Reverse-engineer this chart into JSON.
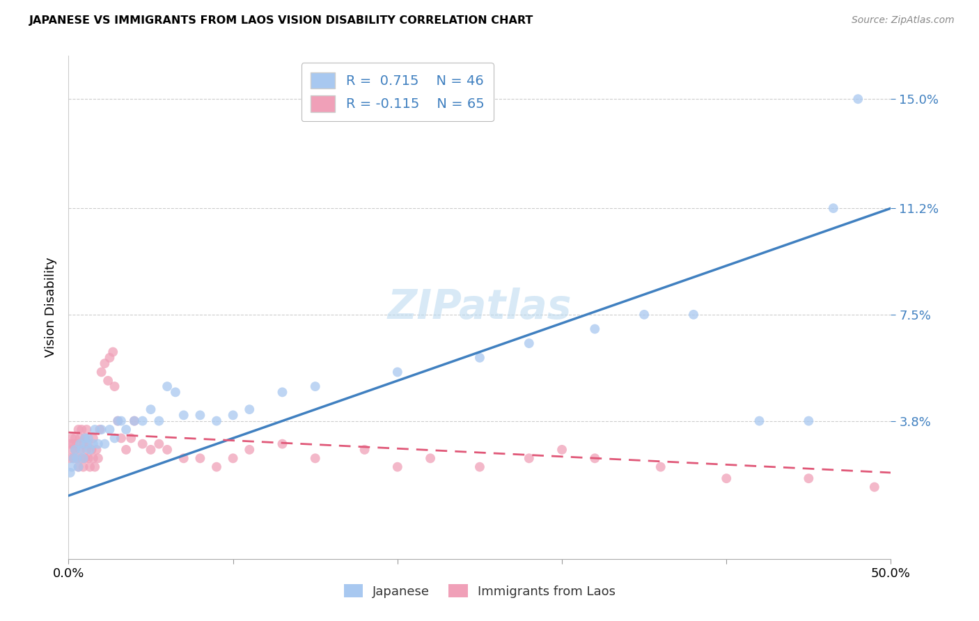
{
  "title": "JAPANESE VS IMMIGRANTS FROM LAOS VISION DISABILITY CORRELATION CHART",
  "source": "Source: ZipAtlas.com",
  "ylabel": "Vision Disability",
  "ytick_values": [
    0.038,
    0.075,
    0.112,
    0.15
  ],
  "xlim": [
    0.0,
    0.5
  ],
  "ylim": [
    -0.01,
    0.165
  ],
  "r_japanese": 0.715,
  "n_japanese": 46,
  "r_laos": -0.115,
  "n_laos": 65,
  "color_japanese": "#A8C8F0",
  "color_laos": "#F0A0B8",
  "color_japanese_line": "#4080C0",
  "color_laos_line": "#E05878",
  "japanese_x": [
    0.001,
    0.002,
    0.003,
    0.004,
    0.005,
    0.006,
    0.007,
    0.008,
    0.009,
    0.01,
    0.011,
    0.012,
    0.013,
    0.015,
    0.016,
    0.018,
    0.02,
    0.022,
    0.025,
    0.028,
    0.03,
    0.032,
    0.035,
    0.04,
    0.045,
    0.05,
    0.055,
    0.06,
    0.065,
    0.07,
    0.08,
    0.09,
    0.1,
    0.11,
    0.13,
    0.15,
    0.2,
    0.25,
    0.28,
    0.32,
    0.35,
    0.38,
    0.42,
    0.45,
    0.465,
    0.48
  ],
  "japanese_y": [
    0.02,
    0.022,
    0.025,
    0.028,
    0.025,
    0.022,
    0.03,
    0.028,
    0.025,
    0.032,
    0.03,
    0.032,
    0.028,
    0.03,
    0.035,
    0.03,
    0.035,
    0.03,
    0.035,
    0.032,
    0.038,
    0.038,
    0.035,
    0.038,
    0.038,
    0.042,
    0.038,
    0.05,
    0.048,
    0.04,
    0.04,
    0.038,
    0.04,
    0.042,
    0.048,
    0.05,
    0.055,
    0.06,
    0.065,
    0.07,
    0.075,
    0.075,
    0.038,
    0.038,
    0.112,
    0.15
  ],
  "laos_x": [
    0.001,
    0.001,
    0.002,
    0.002,
    0.003,
    0.003,
    0.004,
    0.004,
    0.005,
    0.005,
    0.006,
    0.006,
    0.007,
    0.007,
    0.008,
    0.008,
    0.009,
    0.009,
    0.01,
    0.01,
    0.011,
    0.011,
    0.012,
    0.012,
    0.013,
    0.014,
    0.015,
    0.015,
    0.016,
    0.017,
    0.018,
    0.019,
    0.02,
    0.022,
    0.024,
    0.025,
    0.027,
    0.028,
    0.03,
    0.032,
    0.035,
    0.038,
    0.04,
    0.045,
    0.05,
    0.055,
    0.06,
    0.07,
    0.08,
    0.09,
    0.1,
    0.11,
    0.13,
    0.15,
    0.18,
    0.2,
    0.22,
    0.25,
    0.28,
    0.3,
    0.32,
    0.36,
    0.4,
    0.45,
    0.49
  ],
  "laos_y": [
    0.025,
    0.03,
    0.028,
    0.032,
    0.025,
    0.03,
    0.028,
    0.032,
    0.025,
    0.03,
    0.022,
    0.035,
    0.028,
    0.032,
    0.025,
    0.035,
    0.022,
    0.03,
    0.025,
    0.032,
    0.028,
    0.035,
    0.025,
    0.03,
    0.022,
    0.028,
    0.025,
    0.032,
    0.022,
    0.028,
    0.025,
    0.035,
    0.055,
    0.058,
    0.052,
    0.06,
    0.062,
    0.05,
    0.038,
    0.032,
    0.028,
    0.032,
    0.038,
    0.03,
    0.028,
    0.03,
    0.028,
    0.025,
    0.025,
    0.022,
    0.025,
    0.028,
    0.03,
    0.025,
    0.028,
    0.022,
    0.025,
    0.022,
    0.025,
    0.028,
    0.025,
    0.022,
    0.018,
    0.018,
    0.015
  ],
  "blue_line_x": [
    0.0,
    0.5
  ],
  "blue_line_y": [
    0.012,
    0.112
  ],
  "pink_line_x": [
    0.0,
    0.5
  ],
  "pink_line_y": [
    0.034,
    0.02
  ]
}
